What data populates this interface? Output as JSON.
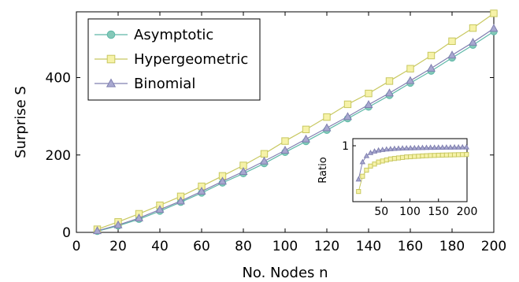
{
  "chart_data": {
    "type": "line",
    "xlabel": "No. Nodes n",
    "ylabel": "Surprise S",
    "xlim": [
      0,
      200
    ],
    "ylim": [
      0,
      570
    ],
    "x_ticks": [
      0,
      20,
      40,
      60,
      80,
      100,
      120,
      140,
      160,
      180,
      200
    ],
    "y_ticks": [
      0,
      200,
      400
    ],
    "grid": false,
    "legend_position": "top-left",
    "series": [
      {
        "name": "Asymptotic",
        "marker": "circle",
        "color": "#5fb8a8",
        "fill": "#84c8b8",
        "x": [
          10,
          20,
          30,
          40,
          50,
          60,
          70,
          80,
          90,
          100,
          110,
          120,
          130,
          140,
          150,
          160,
          170,
          180,
          190,
          200
        ],
        "y": [
          3,
          17,
          34,
          55,
          78,
          102,
          128,
          152,
          178,
          207,
          235,
          264,
          294,
          324,
          354,
          386,
          417,
          451,
          484,
          519
        ]
      },
      {
        "name": "Hypergeometric",
        "marker": "square",
        "color": "#c8c860",
        "fill": "#f6f2a8",
        "x": [
          10,
          20,
          30,
          40,
          50,
          60,
          70,
          80,
          90,
          100,
          110,
          120,
          130,
          140,
          150,
          160,
          170,
          180,
          190,
          200
        ],
        "y": [
          8,
          27,
          48,
          70,
          93,
          119,
          146,
          173,
          203,
          236,
          266,
          298,
          331,
          359,
          391,
          423,
          457,
          494,
          528,
          566
        ]
      },
      {
        "name": "Binomial",
        "marker": "triangle",
        "color": "#8080b0",
        "fill": "#a8a8d0",
        "x": [
          10,
          20,
          30,
          40,
          50,
          60,
          70,
          80,
          90,
          100,
          110,
          120,
          130,
          140,
          150,
          160,
          170,
          180,
          190,
          200
        ],
        "y": [
          4,
          19,
          37,
          59,
          81,
          106,
          132,
          157,
          184,
          212,
          241,
          270,
          299,
          330,
          360,
          392,
          424,
          458,
          491,
          527
        ]
      }
    ],
    "inset": {
      "type": "line",
      "ylabel": "Ratio",
      "xlim": [
        0,
        200
      ],
      "ylim": [
        0.45,
        1.07
      ],
      "x_ticks": [
        50,
        100,
        150,
        200
      ],
      "y_ticks": [
        1
      ],
      "series": [
        {
          "name": "Hypergeometric",
          "marker": "square",
          "color": "#c8c860",
          "fill": "#f6f2a8",
          "x": [
            10,
            17,
            24,
            31,
            38,
            45,
            52,
            59,
            66,
            73,
            80,
            87,
            94,
            101,
            108,
            115,
            122,
            129,
            136,
            143,
            150,
            157,
            164,
            171,
            178,
            185,
            192,
            199
          ],
          "y": [
            0.55,
            0.7,
            0.76,
            0.8,
            0.82,
            0.84,
            0.85,
            0.86,
            0.87,
            0.875,
            0.88,
            0.885,
            0.89,
            0.892,
            0.895,
            0.897,
            0.9,
            0.902,
            0.904,
            0.905,
            0.907,
            0.908,
            0.909,
            0.91,
            0.911,
            0.912,
            0.913,
            0.914
          ]
        },
        {
          "name": "Binomial",
          "marker": "triangle",
          "color": "#8080b0",
          "fill": "#a8a8d0",
          "x": [
            10,
            17,
            24,
            31,
            38,
            45,
            52,
            59,
            66,
            73,
            80,
            87,
            94,
            101,
            108,
            115,
            122,
            129,
            136,
            143,
            150,
            157,
            164,
            171,
            178,
            185,
            192,
            199
          ],
          "y": [
            0.67,
            0.84,
            0.9,
            0.93,
            0.945,
            0.955,
            0.96,
            0.965,
            0.968,
            0.971,
            0.973,
            0.975,
            0.976,
            0.977,
            0.978,
            0.979,
            0.98,
            0.981,
            0.982,
            0.982,
            0.983,
            0.983,
            0.984,
            0.984,
            0.985,
            0.985,
            0.986,
            0.986
          ]
        }
      ]
    }
  }
}
